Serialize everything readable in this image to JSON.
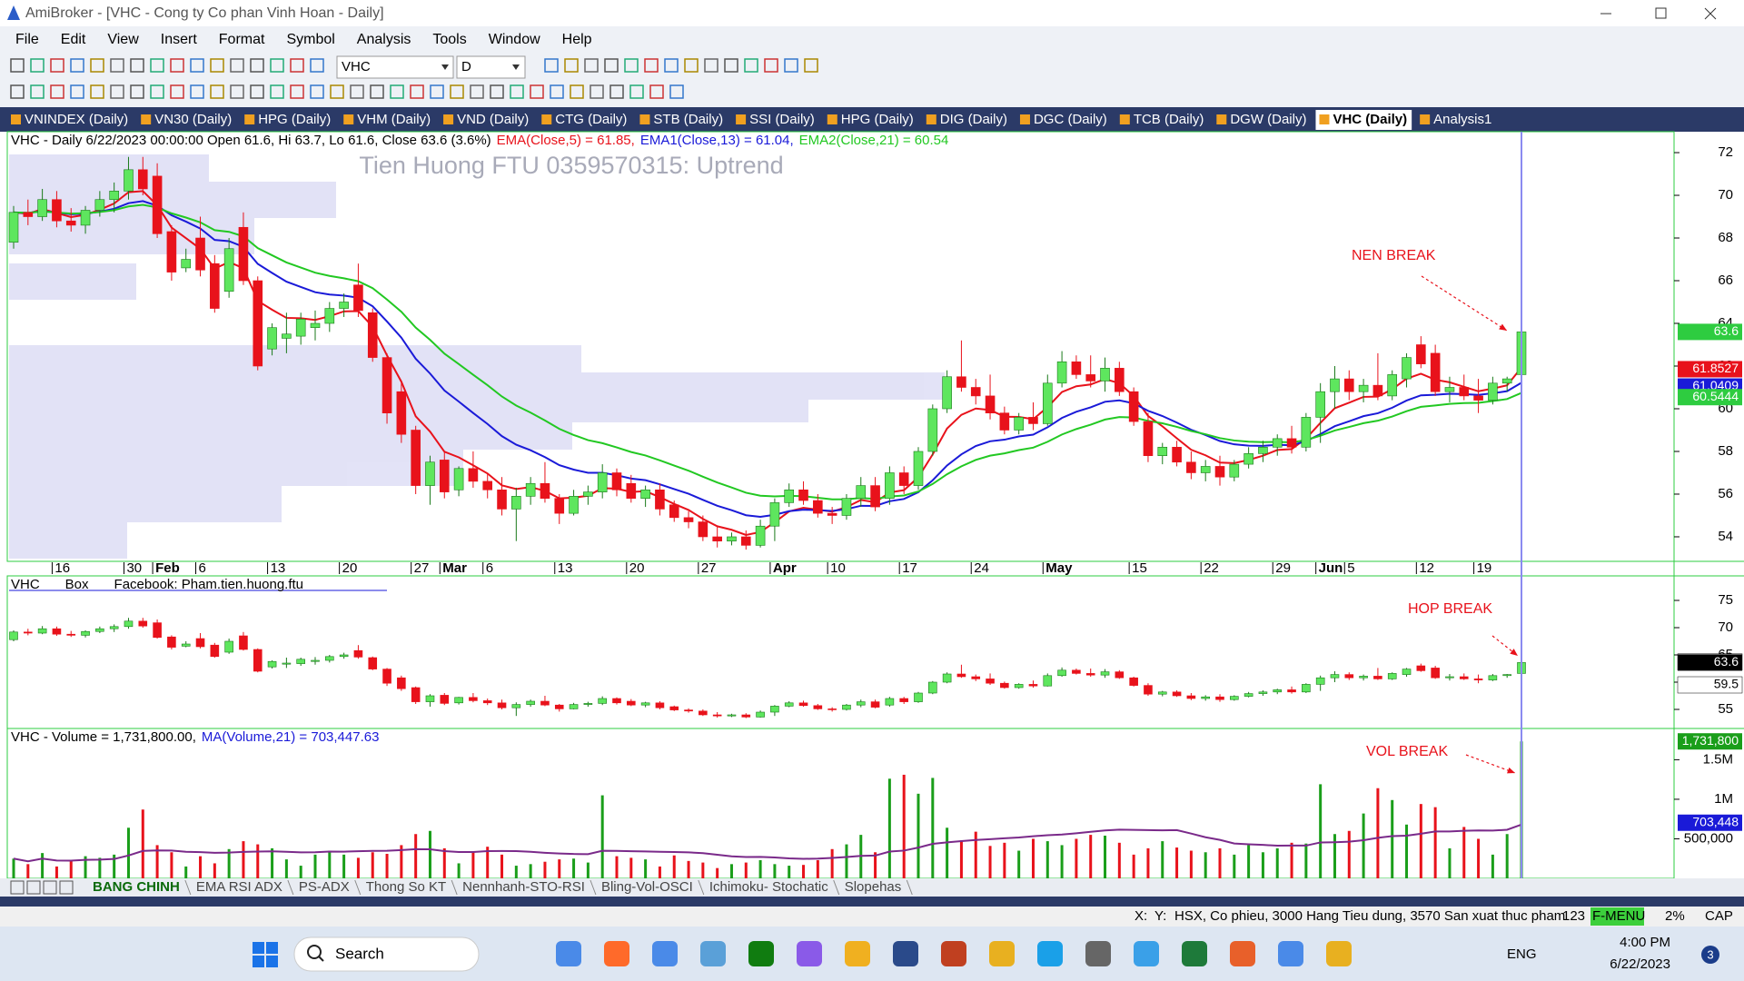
{
  "window": {
    "title": "AmiBroker - [VHC - Cong ty Co phan Vinh Hoan - Daily]"
  },
  "menu": [
    "File",
    "Edit",
    "View",
    "Insert",
    "Format",
    "Symbol",
    "Analysis",
    "Tools",
    "Window",
    "Help"
  ],
  "toolbar": {
    "symbol": "VHC",
    "interval": "D"
  },
  "tabs": [
    "VNINDEX (Daily)",
    "VN30 (Daily)",
    "HPG (Daily)",
    "VHM (Daily)",
    "VND (Daily)",
    "CTG (Daily)",
    "STB (Daily)",
    "SSI (Daily)",
    "HPG (Daily)",
    "DIG (Daily)",
    "DGC (Daily)",
    "TCB (Daily)",
    "DGW (Daily)",
    "VHC (Daily)",
    "Analysis1"
  ],
  "active_tab": 13,
  "chart_data": [
    {
      "type": "candlestick",
      "header": [
        {
          "text": "VHC - Daily 6/22/2023 00:00:00 Open 61.6, Hi 63.7, Lo 61.6, Close 63.6 (3.6%)",
          "color": "#000000"
        },
        {
          "text": "EMA(Close,5) = 61.85,",
          "color": "#e8121b"
        },
        {
          "text": "EMA1(Close,13) = 61.04,",
          "color": "#1a1ad8"
        },
        {
          "text": "EMA2(Close,21) = 60.54",
          "color": "#22c822"
        }
      ],
      "watermark": "Tien Huong FTU 0359570315: Uptrend",
      "annotation": "NEN BREAK",
      "ema": [
        {
          "period": 5,
          "color": "#e8121b"
        },
        {
          "period": 13,
          "color": "#1a1ad8"
        },
        {
          "period": 21,
          "color": "#22c822"
        }
      ],
      "categories": [
        null,
        null,
        null,
        "16",
        null,
        null,
        null,
        null,
        "30",
        null,
        "Feb",
        null,
        null,
        "6",
        null,
        null,
        null,
        null,
        "13",
        null,
        null,
        null,
        null,
        "20",
        null,
        null,
        null,
        null,
        "27",
        null,
        "Mar",
        null,
        null,
        "6",
        null,
        null,
        null,
        null,
        "13",
        null,
        null,
        null,
        null,
        "20",
        null,
        null,
        null,
        null,
        "27",
        null,
        null,
        null,
        null,
        "Apr",
        null,
        null,
        null,
        "10",
        null,
        null,
        null,
        null,
        "17",
        null,
        null,
        null,
        null,
        "24",
        null,
        null,
        null,
        null,
        "May",
        null,
        null,
        null,
        null,
        null,
        "15",
        null,
        null,
        null,
        null,
        "22",
        null,
        null,
        null,
        null,
        "29",
        null,
        null,
        "Jun",
        null,
        "5",
        null,
        null,
        null,
        null,
        "12",
        null,
        null,
        null,
        "19",
        null,
        null,
        null
      ],
      "candles": [
        [
          67.8,
          69.5,
          67.5,
          69.2
        ],
        [
          69.2,
          69.8,
          68.6,
          69.0
        ],
        [
          69.0,
          70.3,
          68.8,
          69.8
        ],
        [
          69.8,
          70.2,
          68.5,
          68.8
        ],
        [
          68.8,
          69.4,
          68.3,
          68.6
        ],
        [
          68.6,
          69.5,
          68.2,
          69.3
        ],
        [
          69.3,
          70.2,
          69.0,
          69.8
        ],
        [
          69.8,
          70.6,
          69.2,
          70.2
        ],
        [
          70.2,
          71.8,
          69.8,
          71.2
        ],
        [
          71.2,
          71.8,
          70.0,
          70.3
        ],
        [
          70.9,
          71.5,
          68.0,
          68.2
        ],
        [
          68.3,
          68.6,
          66.0,
          66.4
        ],
        [
          66.6,
          67.5,
          66.4,
          67.0
        ],
        [
          68.0,
          69.0,
          66.2,
          66.5
        ],
        [
          66.8,
          67.2,
          64.5,
          64.7
        ],
        [
          65.5,
          68.0,
          65.2,
          67.5
        ],
        [
          68.5,
          69.2,
          65.8,
          66.0
        ],
        [
          66.0,
          66.2,
          61.8,
          62.0
        ],
        [
          62.8,
          64.0,
          62.5,
          63.8
        ],
        [
          63.3,
          64.5,
          62.6,
          63.5
        ],
        [
          63.4,
          64.5,
          63.0,
          64.2
        ],
        [
          63.8,
          64.6,
          63.2,
          64.0
        ],
        [
          64.0,
          65.0,
          63.6,
          64.7
        ],
        [
          64.7,
          65.4,
          64.3,
          65.0
        ],
        [
          65.8,
          66.8,
          64.3,
          64.6
        ],
        [
          64.5,
          64.7,
          62.2,
          62.4
        ],
        [
          62.4,
          62.6,
          59.3,
          59.8
        ],
        [
          60.8,
          61.2,
          58.4,
          58.8
        ],
        [
          59.0,
          59.2,
          56.0,
          56.4
        ],
        [
          56.4,
          57.8,
          55.5,
          57.5
        ],
        [
          57.6,
          58.0,
          55.8,
          56.1
        ],
        [
          56.2,
          57.3,
          55.9,
          57.2
        ],
        [
          57.2,
          58.0,
          56.3,
          56.6
        ],
        [
          56.6,
          57.0,
          55.8,
          56.2
        ],
        [
          56.2,
          56.8,
          55.0,
          55.3
        ],
        [
          55.3,
          56.3,
          53.8,
          55.9
        ],
        [
          55.9,
          56.8,
          55.5,
          56.5
        ],
        [
          56.5,
          57.5,
          55.6,
          55.8
        ],
        [
          55.8,
          56.0,
          54.6,
          55.1
        ],
        [
          55.1,
          56.2,
          55.0,
          55.9
        ],
        [
          55.9,
          56.4,
          55.5,
          56.1
        ],
        [
          56.1,
          57.4,
          55.8,
          57.0
        ],
        [
          57.0,
          57.2,
          55.9,
          56.2
        ],
        [
          56.5,
          56.9,
          55.6,
          55.8
        ],
        [
          55.8,
          56.4,
          55.4,
          56.2
        ],
        [
          56.2,
          56.5,
          55.0,
          55.3
        ],
        [
          55.5,
          55.7,
          54.7,
          54.9
        ],
        [
          54.9,
          55.2,
          54.4,
          54.7
        ],
        [
          54.7,
          55.0,
          53.8,
          54.0
        ],
        [
          54.0,
          54.5,
          53.5,
          53.8
        ],
        [
          53.8,
          54.2,
          53.6,
          54.0
        ],
        [
          54.0,
          54.3,
          53.4,
          53.6
        ],
        [
          53.6,
          54.8,
          53.5,
          54.5
        ],
        [
          54.5,
          55.8,
          53.8,
          55.6
        ],
        [
          55.6,
          56.5,
          55.4,
          56.2
        ],
        [
          56.2,
          56.6,
          55.5,
          55.7
        ],
        [
          55.7,
          56.0,
          54.9,
          55.1
        ],
        [
          55.1,
          55.4,
          54.6,
          55.0
        ],
        [
          55.0,
          56.0,
          54.8,
          55.8
        ],
        [
          55.8,
          56.8,
          55.4,
          56.4
        ],
        [
          56.4,
          56.8,
          55.2,
          55.4
        ],
        [
          55.8,
          57.3,
          55.5,
          57.0
        ],
        [
          57.0,
          57.3,
          56.0,
          56.4
        ],
        [
          56.4,
          58.2,
          56.2,
          58.0
        ],
        [
          58.0,
          60.2,
          57.8,
          60.0
        ],
        [
          60.0,
          61.8,
          59.8,
          61.5
        ],
        [
          61.5,
          63.2,
          60.8,
          61.0
        ],
        [
          61.0,
          61.4,
          60.2,
          60.6
        ],
        [
          60.6,
          61.6,
          59.5,
          59.8
        ],
        [
          59.8,
          60.1,
          58.8,
          59.0
        ],
        [
          59.0,
          59.8,
          58.8,
          59.6
        ],
        [
          59.6,
          60.3,
          59.0,
          59.3
        ],
        [
          59.3,
          61.6,
          59.2,
          61.2
        ],
        [
          61.2,
          62.7,
          61.0,
          62.2
        ],
        [
          62.2,
          62.5,
          61.4,
          61.6
        ],
        [
          61.6,
          62.5,
          61.0,
          61.3
        ],
        [
          61.3,
          62.4,
          60.8,
          61.9
        ],
        [
          61.9,
          62.2,
          60.6,
          60.8
        ],
        [
          60.8,
          61.0,
          59.2,
          59.4
        ],
        [
          59.4,
          59.8,
          57.5,
          57.8
        ],
        [
          57.8,
          58.4,
          57.4,
          58.2
        ],
        [
          58.2,
          58.5,
          57.3,
          57.5
        ],
        [
          57.5,
          58.0,
          56.7,
          57.0
        ],
        [
          57.0,
          57.6,
          56.6,
          57.3
        ],
        [
          57.3,
          57.8,
          56.4,
          56.8
        ],
        [
          56.8,
          57.6,
          56.6,
          57.4
        ],
        [
          57.4,
          58.2,
          57.2,
          57.9
        ],
        [
          57.9,
          58.5,
          57.5,
          58.2
        ],
        [
          58.2,
          58.8,
          57.8,
          58.6
        ],
        [
          58.6,
          59.2,
          57.9,
          58.2
        ],
        [
          58.2,
          59.8,
          58.0,
          59.6
        ],
        [
          59.6,
          61.2,
          58.4,
          60.8
        ],
        [
          60.8,
          62.0,
          60.0,
          61.4
        ],
        [
          61.4,
          61.8,
          60.4,
          60.8
        ],
        [
          60.8,
          61.4,
          60.3,
          61.1
        ],
        [
          61.1,
          62.6,
          60.4,
          60.6
        ],
        [
          60.6,
          61.8,
          60.4,
          61.6
        ],
        [
          61.4,
          62.6,
          61.0,
          62.4
        ],
        [
          63.0,
          63.4,
          61.9,
          62.1
        ],
        [
          62.6,
          63.0,
          60.6,
          60.8
        ],
        [
          60.8,
          61.5,
          60.3,
          61.0
        ],
        [
          61.0,
          61.6,
          60.4,
          60.6
        ],
        [
          60.6,
          61.4,
          59.8,
          60.4
        ],
        [
          60.4,
          61.5,
          60.2,
          61.2
        ],
        [
          61.2,
          61.5,
          60.8,
          61.4
        ],
        [
          61.6,
          63.7,
          61.6,
          63.6
        ]
      ],
      "up_color": "#5ee65e",
      "down_color": "#e8121b",
      "ylim": [
        52.85,
        72.98
      ],
      "yticks": [
        54,
        56,
        58,
        60,
        62,
        64,
        66,
        68,
        70,
        72
      ],
      "markers": [
        {
          "value": 63.6,
          "color": "#2ecc40"
        },
        {
          "value": 61.8527,
          "color": "#e8121b"
        },
        {
          "value": 61.0409,
          "color": "#1a1ad8"
        },
        {
          "value": 60.5444,
          "color": "#2ecc40"
        }
      ]
    },
    {
      "type": "box",
      "header": [
        {
          "text": "VHC",
          "color": "#000000"
        },
        {
          "text": "Box",
          "color": "#000000"
        },
        {
          "text": "Facebook: Pham.tien.huong.ftu",
          "color": "#000000"
        }
      ],
      "annotation": "HOP BREAK",
      "ylim": [
        51.5,
        79.5
      ],
      "yticks": [
        55,
        60,
        65,
        70,
        75
      ],
      "markers": [
        {
          "value": 63.7,
          "color": "#ffffff"
        },
        {
          "value": 63.6,
          "color": "#000000"
        },
        {
          "value": 59.5,
          "color": "#ffffff"
        }
      ]
    },
    {
      "type": "bar",
      "header": [
        {
          "text": "VHC - Volume = 1,731,800.00,",
          "color": "#000000"
        },
        {
          "text": "MA(Volume,21) = 703,447.63",
          "color": "#1a1ad8"
        }
      ],
      "annotation": "VOL BREAK",
      "ma_period": 21,
      "ma_color": "#7a2a8a",
      "values": [
        250000,
        180000,
        320000,
        150000,
        220000,
        280000,
        260000,
        300000,
        640000,
        870000,
        420000,
        330000,
        150000,
        280000,
        190000,
        370000,
        470000,
        430000,
        380000,
        240000,
        160000,
        300000,
        350000,
        300000,
        260000,
        330000,
        310000,
        420000,
        560000,
        600000,
        380000,
        190000,
        330000,
        400000,
        300000,
        160000,
        180000,
        210000,
        240000,
        250000,
        200000,
        1050000,
        280000,
        260000,
        240000,
        150000,
        290000,
        220000,
        200000,
        130000,
        180000,
        200000,
        230000,
        180000,
        160000,
        170000,
        230000,
        370000,
        430000,
        550000,
        330000,
        1260000,
        1310000,
        1070000,
        1270000,
        640000,
        480000,
        590000,
        410000,
        450000,
        350000,
        500000,
        470000,
        420000,
        500000,
        550000,
        540000,
        450000,
        300000,
        380000,
        470000,
        390000,
        350000,
        330000,
        380000,
        300000,
        420000,
        330000,
        380000,
        450000,
        440000,
        1190000,
        560000,
        600000,
        820000,
        1140000,
        990000,
        680000,
        940000,
        900000,
        380000,
        650000,
        500000,
        300000,
        560000,
        1731800
      ],
      "up_color": "#1a9e1a",
      "down_color": "#e8121b",
      "ylim": [
        0,
        1895000
      ],
      "yticks": [
        {
          "value": 500000,
          "label": "500,000"
        },
        {
          "value": 1000000,
          "label": "1M"
        },
        {
          "value": 1500000,
          "label": "1.5M"
        }
      ],
      "markers": [
        {
          "value": 1731800,
          "label": "1,731,800",
          "color": "#1a9e1a"
        },
        {
          "value": 703448,
          "label": "703,448",
          "color": "#1a1ad8"
        }
      ]
    }
  ],
  "sheet_tabs": [
    "BANG CHINH",
    "EMA RSI ADX",
    "PS-ADX",
    "Thong So KT",
    "Nennhanh-STO-RSI",
    "Bling-Vol-OSCI",
    "Ichimoku- Stochatic",
    "Slopehas"
  ],
  "active_sheet": 0,
  "status": [
    "X:",
    "Y:",
    "HSX, Co phieu, 3000 Hang Tieu dung, 3570 San xuat thuc pham",
    "123",
    "F-MENU",
    "2%",
    "CAP"
  ],
  "taskbar": {
    "search": "Search",
    "language": "ENG",
    "time": "4:00 PM",
    "date": "6/22/2023",
    "badge": "3"
  }
}
